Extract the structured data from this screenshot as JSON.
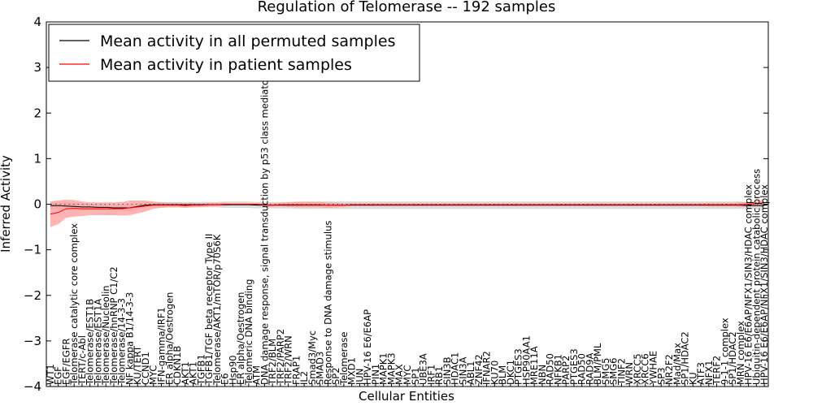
{
  "chart_data": {
    "type": "line",
    "title": "Regulation of Telomerase -- 192 samples",
    "xlabel": "Cellular Entities",
    "ylabel": "Inferred Activity",
    "ylim": [
      -4,
      4
    ],
    "yticks": [
      "4",
      "3",
      "2",
      "1",
      "0",
      "−1",
      "−2",
      "−3",
      "−4"
    ],
    "grid": false,
    "legend_position": "top-left",
    "entities": [
      "WT1",
      "EGF",
      "EGF/EGFR",
      "Telomerase catalytic core complex",
      "TERT/c-Abl",
      "Telomerase/EST1B",
      "Telomerase/EST1A",
      "Telomerase/Nucleolin",
      "Telomerase/hnRNP C1/C2",
      "Telomerase/14-3-3",
      "NF kappa B1/14-3-3",
      "KU/TERT",
      "CCND1",
      "MYC",
      "IFN-gamma/IRF1",
      "ER alpha/Oestrogen",
      "CDKN1B",
      "AKT1",
      "AKT1",
      "TGFB1",
      "TGFB1/TGF beta receptor Type II",
      "Telomerase/AKT1/mTOR/p70S6K",
      "E6",
      "Hsp90",
      "ER alpha/Oestrogen",
      "Telomeric DNA binding",
      "ATM",
      "DNA damage response, signal transduction by p53 class mediator",
      "TRF2/BLM",
      "TRF2/PARP2",
      "TRF2/WRN",
      "FRAP1",
      "IL2",
      "Smad3/Myc",
      "SMAD3",
      "Response to DNA damage stimulus",
      "SP2",
      "Telomerase",
      "MXD1",
      "JUN",
      "HPV-16 E6/E6AP",
      "PIN1",
      "MAPK1",
      "MAPK3",
      "MAX",
      "MYC",
      "SP1",
      "UBE3A",
      "IRF1",
      "RB1",
      "SIN3B",
      "HDAC1",
      "SIN3A",
      "ABL1",
      "ZNF42",
      "IFNAR2",
      "KU70",
      "BLM",
      "DKC1",
      "PTGES3",
      "HSP90AA1",
      "MRE11A",
      "NBN",
      "RAD50",
      "NFKB1",
      "PARP2",
      "PTGES3",
      "RAD50",
      "RAD9A",
      "BLM/PML",
      "SMG5",
      "SMG6",
      "TINF2",
      "WRN",
      "XRCC5",
      "XRCC6",
      "YWHAE",
      "SP3",
      "NR2F2",
      "Mad/Max",
      "SP1/HDAC2",
      "KU",
      "ATF3",
      "NFX1",
      "TERF2",
      "9-1-1 complex",
      "SP1/HDAC2",
      "MRN complex",
      "HPV-16 E6/E6AP/NFX1/SIN3/HDAC complex",
      "Ubiquitin-dependent protein catabolic process",
      "HPV-16 E6/E6AP/NFX1/SIN3/HDAC complex"
    ],
    "series": [
      {
        "name": "Mean activity in all permuted samples",
        "color": "#000000",
        "band_color": "#c8c8c8",
        "values": [
          -0.03,
          -0.03,
          -0.04,
          -0.05,
          -0.06,
          -0.06,
          -0.07,
          -0.07,
          -0.08,
          -0.08,
          -0.08,
          -0.05,
          -0.02,
          -0.01,
          -0.01,
          -0.01,
          -0.01,
          -0.01,
          -0.01,
          -0.01,
          -0.01,
          -0.01,
          -0.01,
          -0.01,
          -0.01,
          -0.01,
          -0.02,
          -0.02,
          -0.02,
          -0.02,
          -0.02,
          -0.02,
          -0.02,
          -0.02,
          -0.02,
          -0.02,
          -0.02,
          -0.02,
          -0.02,
          -0.02,
          -0.02,
          -0.02,
          -0.02,
          -0.02,
          -0.02,
          -0.02,
          -0.02,
          -0.02,
          -0.02,
          -0.02,
          -0.02,
          -0.02,
          -0.02,
          -0.02,
          -0.02,
          -0.02,
          -0.02,
          -0.02,
          -0.02,
          -0.02,
          -0.02,
          -0.02,
          -0.02,
          -0.02,
          -0.02,
          -0.02,
          -0.02,
          -0.02,
          -0.02,
          -0.02,
          -0.02,
          -0.02,
          -0.02,
          -0.02,
          -0.02,
          -0.02,
          -0.02,
          -0.02,
          -0.02,
          -0.02,
          -0.02,
          -0.02,
          -0.02,
          -0.02,
          -0.02,
          -0.02,
          -0.02,
          -0.02,
          -0.03,
          -0.03,
          -0.03
        ],
        "band": [
          0.08,
          0.08,
          0.08,
          0.08,
          0.07,
          0.07,
          0.07,
          0.07,
          0.07,
          0.07,
          0.07,
          0.06,
          0.06,
          0.06,
          0.06,
          0.06,
          0.06,
          0.06,
          0.06,
          0.06,
          0.06,
          0.06,
          0.07,
          0.07,
          0.07,
          0.07,
          0.07,
          0.07,
          0.07,
          0.07,
          0.07,
          0.08,
          0.08,
          0.08,
          0.08,
          0.08,
          0.08,
          0.08,
          0.08,
          0.08,
          0.08,
          0.08,
          0.08,
          0.08,
          0.08,
          0.08,
          0.08,
          0.08,
          0.08,
          0.08,
          0.08,
          0.08,
          0.08,
          0.08,
          0.08,
          0.08,
          0.08,
          0.08,
          0.08,
          0.08,
          0.08,
          0.08,
          0.08,
          0.08,
          0.08,
          0.08,
          0.08,
          0.08,
          0.08,
          0.08,
          0.08,
          0.08,
          0.08,
          0.08,
          0.08,
          0.08,
          0.08,
          0.08,
          0.08,
          0.08,
          0.08,
          0.08,
          0.08,
          0.08,
          0.08,
          0.08,
          0.08,
          0.08,
          0.08,
          0.08,
          0.08
        ]
      },
      {
        "name": "Mean activity in patient samples",
        "color": "#ff0000",
        "band_color": "#ff9999",
        "values": [
          -0.22,
          -0.18,
          -0.1,
          -0.09,
          -0.1,
          -0.1,
          -0.1,
          -0.1,
          -0.1,
          -0.1,
          -0.08,
          -0.06,
          -0.04,
          -0.02,
          -0.02,
          -0.02,
          -0.02,
          -0.03,
          -0.02,
          -0.02,
          -0.01,
          -0.01,
          0.0,
          0.0,
          0.0,
          0.0,
          0.0,
          -0.01,
          -0.02,
          -0.01,
          -0.01,
          -0.01,
          -0.01,
          -0.01,
          -0.01,
          -0.02,
          -0.02,
          -0.02,
          -0.01,
          -0.01,
          -0.01,
          -0.01,
          -0.01,
          -0.01,
          -0.01,
          -0.01,
          -0.01,
          -0.01,
          -0.01,
          -0.01,
          -0.01,
          -0.01,
          -0.01,
          -0.01,
          -0.01,
          -0.01,
          -0.01,
          -0.01,
          -0.01,
          -0.01,
          -0.01,
          -0.01,
          -0.01,
          -0.01,
          -0.01,
          -0.01,
          -0.01,
          -0.01,
          -0.01,
          -0.01,
          -0.01,
          -0.01,
          -0.01,
          -0.01,
          -0.01,
          -0.01,
          -0.01,
          -0.01,
          -0.01,
          -0.01,
          -0.01,
          -0.01,
          -0.01,
          -0.01,
          -0.01,
          -0.01,
          -0.01,
          -0.01,
          0.0,
          0.01,
          0.03
        ],
        "band": [
          0.28,
          0.26,
          0.2,
          0.18,
          0.16,
          0.14,
          0.14,
          0.14,
          0.14,
          0.15,
          0.16,
          0.14,
          0.12,
          0.08,
          0.06,
          0.05,
          0.05,
          0.05,
          0.05,
          0.04,
          0.04,
          0.04,
          0.03,
          0.02,
          0.02,
          0.02,
          0.02,
          0.03,
          0.04,
          0.04,
          0.05,
          0.06,
          0.06,
          0.06,
          0.06,
          0.06,
          0.05,
          0.04,
          0.03,
          0.03,
          0.03,
          0.03,
          0.03,
          0.03,
          0.03,
          0.03,
          0.03,
          0.03,
          0.03,
          0.03,
          0.03,
          0.03,
          0.03,
          0.03,
          0.03,
          0.03,
          0.03,
          0.03,
          0.03,
          0.03,
          0.03,
          0.03,
          0.03,
          0.03,
          0.03,
          0.03,
          0.03,
          0.03,
          0.03,
          0.03,
          0.03,
          0.03,
          0.03,
          0.03,
          0.03,
          0.03,
          0.03,
          0.03,
          0.03,
          0.03,
          0.03,
          0.03,
          0.03,
          0.04,
          0.04,
          0.04,
          0.04,
          0.05,
          0.05,
          0.06,
          0.06
        ]
      }
    ]
  }
}
